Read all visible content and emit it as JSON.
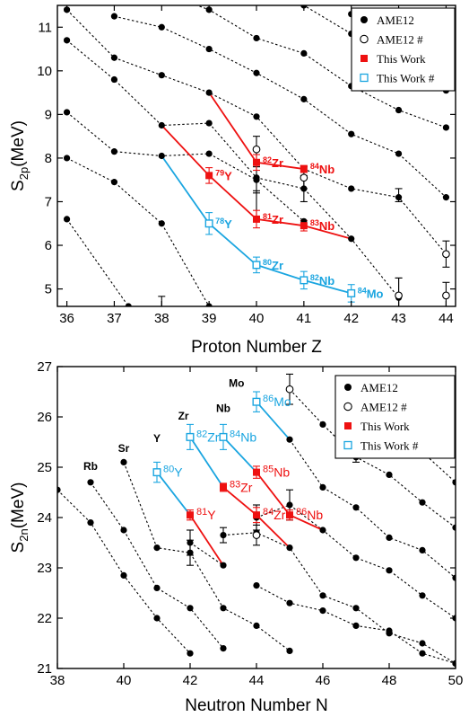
{
  "chart_data": [
    {
      "type": "scatter",
      "xlabel": "Proton Number Z",
      "ylabel_main": "S",
      "ylabel_sub": "2p",
      "ylabel_unit": "(MeV)",
      "xlim": [
        35.8,
        44.2
      ],
      "ylim": [
        4.6,
        11.5
      ],
      "xticks": [
        36,
        37,
        38,
        39,
        40,
        41,
        42,
        43,
        44
      ],
      "yticks": [
        5,
        6,
        7,
        8,
        9,
        10,
        11
      ],
      "legend": {
        "placement": "top-right",
        "entries": [
          {
            "label": "AME12",
            "marker": "filled-circle",
            "color": "#000000"
          },
          {
            "label": "AME12 #",
            "marker": "open-circle",
            "color": "#000000"
          },
          {
            "label": "This Work",
            "marker": "filled-square",
            "color": "#ee1111"
          },
          {
            "label": "This Work #",
            "marker": "open-square",
            "color": "#1aa5e0"
          }
        ]
      },
      "ame_chains": [
        [
          [
            36,
            6.6
          ],
          [
            37.3,
            4.6
          ]
        ],
        [
          [
            36,
            8.0
          ],
          [
            37,
            7.45
          ],
          [
            38,
            6.5
          ],
          [
            39,
            4.6
          ]
        ],
        [
          [
            36,
            9.05
          ],
          [
            37,
            8.15
          ],
          [
            38,
            8.05
          ],
          [
            39,
            8.1
          ],
          [
            40,
            7.5
          ],
          [
            41,
            6.55
          ]
        ],
        [
          [
            36,
            10.7
          ],
          [
            37,
            9.8
          ],
          [
            38,
            8.75
          ],
          [
            39,
            8.8
          ],
          [
            40,
            7.55
          ],
          [
            41,
            7.3
          ],
          [
            42,
            6.15
          ],
          [
            43,
            4.8
          ]
        ],
        [
          [
            36,
            11.4
          ],
          [
            37,
            10.3
          ],
          [
            38,
            9.9
          ],
          [
            39,
            9.5
          ],
          [
            40,
            8.95
          ],
          [
            41,
            7.75
          ],
          [
            42,
            7.3
          ],
          [
            43,
            7.1
          ],
          [
            44,
            5.8
          ]
        ],
        [
          [
            37,
            11.25
          ],
          [
            38,
            11.0
          ],
          [
            39,
            10.5
          ],
          [
            40,
            9.95
          ],
          [
            41,
            9.35
          ],
          [
            42,
            8.55
          ],
          [
            43,
            8.1
          ],
          [
            44,
            7.1
          ]
        ],
        [
          [
            38,
            11.8
          ],
          [
            39,
            11.4
          ],
          [
            40,
            10.75
          ],
          [
            41,
            10.4
          ],
          [
            42,
            9.65
          ],
          [
            43,
            9.1
          ],
          [
            44,
            8.7
          ]
        ],
        [
          [
            40,
            11.9
          ],
          [
            41,
            11.5
          ],
          [
            42,
            10.85
          ],
          [
            43,
            10.5
          ],
          [
            44,
            9.55
          ]
        ],
        [
          [
            42,
            11.3
          ],
          [
            43,
            11.0
          ],
          [
            44,
            10.5
          ]
        ]
      ],
      "ame_errorbars": [
        {
          "x": 38,
          "y": 4.65,
          "err": 0.18
        },
        {
          "x": 40,
          "y": 6.95,
          "err": 0.3
        },
        {
          "x": 40,
          "y": 7.5,
          "err": 0.3
        },
        {
          "x": 41,
          "y": 7.3,
          "err": 0.3
        },
        {
          "x": 43,
          "y": 7.15,
          "err": 0.15
        },
        {
          "x": 43,
          "y": 4.85,
          "err": 0.4
        }
      ],
      "ame_estimated": [
        {
          "x": 40,
          "y": 8.2,
          "err": 0.3
        },
        {
          "x": 41,
          "y": 7.55,
          "err": 0.25
        },
        {
          "x": 43,
          "y": 4.85,
          "err": 0.4
        },
        {
          "x": 44,
          "y": 5.8,
          "err": 0.3
        },
        {
          "x": 44,
          "y": 4.85,
          "err": 0.3
        }
      ],
      "this_work_lines": [
        [
          [
            38,
            8.75
          ],
          [
            39,
            7.6
          ],
          [
            40,
            6.6
          ],
          [
            41,
            6.45
          ],
          [
            42,
            6.15
          ]
        ],
        [
          [
            39,
            9.5
          ],
          [
            40,
            7.9
          ],
          [
            41,
            7.75
          ]
        ],
        [
          [
            38,
            8.05
          ],
          [
            39,
            6.5
          ],
          [
            40,
            5.55
          ],
          [
            41,
            5.2
          ],
          [
            42,
            4.9
          ]
        ]
      ],
      "this_work": [
        {
          "x": 39,
          "y": 7.6,
          "err": 0.18,
          "label_pre": "79",
          "label_el": "Y"
        },
        {
          "x": 40,
          "y": 7.9,
          "err": 0.18,
          "label_pre": "82",
          "label_el": "Zr"
        },
        {
          "x": 41,
          "y": 7.75,
          "err": 0.08,
          "label_pre": "84",
          "label_el": "Nb"
        },
        {
          "x": 40,
          "y": 6.6,
          "err": 0.2,
          "label_pre": "81",
          "label_el": "Zr"
        },
        {
          "x": 41,
          "y": 6.45,
          "err": 0.12,
          "label_pre": "83",
          "label_el": "Nb"
        }
      ],
      "this_work_est": [
        {
          "x": 39,
          "y": 6.5,
          "err": 0.25,
          "label_pre": "78",
          "label_el": "Y"
        },
        {
          "x": 40,
          "y": 5.55,
          "err": 0.18,
          "label_pre": "80",
          "label_el": "Zr"
        },
        {
          "x": 41,
          "y": 5.2,
          "err": 0.2,
          "label_pre": "82",
          "label_el": "Nb"
        },
        {
          "x": 42,
          "y": 4.9,
          "err": 0.2,
          "label_pre": "84",
          "label_el": "Mo"
        }
      ]
    },
    {
      "type": "scatter",
      "xlabel": "Neutron Number N",
      "ylabel_main": "S",
      "ylabel_sub": "2n",
      "ylabel_unit": "(MeV)",
      "xlim": [
        38,
        50
      ],
      "ylim": [
        21,
        27
      ],
      "xticks": [
        38,
        40,
        42,
        44,
        46,
        48,
        50
      ],
      "yticks": [
        21,
        22,
        23,
        24,
        25,
        26,
        27
      ],
      "legend": {
        "placement": "top-right",
        "entries": [
          {
            "label": "AME12",
            "marker": "filled-circle",
            "color": "#000000"
          },
          {
            "label": "AME12 #",
            "marker": "open-circle",
            "color": "#000000"
          },
          {
            "label": "This Work",
            "marker": "filled-square",
            "color": "#ee1111"
          },
          {
            "label": "This Work #",
            "marker": "open-square",
            "color": "#1aa5e0"
          }
        ]
      },
      "element_labels": [
        {
          "x": 39,
          "y": 24.95,
          "text": "Rb"
        },
        {
          "x": 40,
          "y": 25.3,
          "text": "Sr"
        },
        {
          "x": 41,
          "y": 25.5,
          "text": "Y"
        },
        {
          "x": 41.8,
          "y": 25.95,
          "text": "Zr"
        },
        {
          "x": 43,
          "y": 26.1,
          "text": "Nb"
        },
        {
          "x": 43.4,
          "y": 26.6,
          "text": "Mo"
        }
      ],
      "ame_chains": [
        [
          [
            38,
            24.55
          ],
          [
            39,
            23.9
          ],
          [
            40,
            22.85
          ],
          [
            41,
            22.0
          ],
          [
            42,
            21.3
          ]
        ],
        [
          [
            39,
            24.7
          ],
          [
            40,
            23.75
          ],
          [
            41,
            22.6
          ],
          [
            42,
            22.2
          ],
          [
            43,
            21.4
          ]
        ],
        [
          [
            40,
            25.1
          ],
          [
            41,
            23.4
          ],
          [
            42,
            23.3
          ],
          [
            43,
            22.2
          ],
          [
            44,
            21.85
          ],
          [
            45,
            21.35
          ]
        ],
        [
          [
            42,
            23.5
          ],
          [
            43,
            23.05
          ]
        ],
        [
          [
            43,
            23.65
          ],
          [
            44,
            23.7
          ],
          [
            45,
            23.4
          ],
          [
            46,
            22.45
          ],
          [
            47,
            22.2
          ],
          [
            48,
            21.7
          ],
          [
            49,
            21.5
          ],
          [
            50,
            21.1
          ]
        ],
        [
          [
            44,
            22.65
          ],
          [
            45,
            22.3
          ],
          [
            46,
            22.15
          ],
          [
            47,
            21.85
          ],
          [
            48,
            21.75
          ],
          [
            49,
            21.3
          ],
          [
            50,
            21.1
          ]
        ],
        [
          [
            44,
            24.0
          ],
          [
            45,
            24.25
          ],
          [
            46,
            23.75
          ],
          [
            47,
            23.2
          ],
          [
            48,
            22.95
          ],
          [
            49,
            22.45
          ],
          [
            50,
            22.0
          ]
        ],
        [
          [
            45,
            25.55
          ],
          [
            46,
            24.6
          ],
          [
            47,
            24.2
          ],
          [
            48,
            23.6
          ],
          [
            49,
            23.35
          ],
          [
            50,
            22.8
          ]
        ],
        [
          [
            45,
            26.55
          ],
          [
            46,
            25.85
          ],
          [
            47,
            25.2
          ],
          [
            48,
            24.85
          ],
          [
            49,
            24.3
          ],
          [
            50,
            23.8
          ]
        ],
        [
          [
            47,
            26.45
          ],
          [
            48,
            25.7
          ],
          [
            49,
            25.3
          ],
          [
            50,
            24.7
          ]
        ],
        [
          [
            49,
            26.1
          ],
          [
            50,
            25.7
          ]
        ]
      ],
      "ame_errorbars": [
        {
          "x": 42,
          "y": 23.5,
          "err": 0.25
        },
        {
          "x": 42,
          "y": 23.3,
          "err": 0.25
        },
        {
          "x": 43,
          "y": 23.65,
          "err": 0.15
        },
        {
          "x": 44,
          "y": 24.0,
          "err": 0.25
        },
        {
          "x": 45,
          "y": 24.25,
          "err": 0.3
        },
        {
          "x": 47,
          "y": 25.2,
          "err": 0.1
        }
      ],
      "ame_estimated": [
        {
          "x": 44,
          "y": 23.65,
          "err": 0.2
        },
        {
          "x": 45,
          "y": 26.55,
          "err": 0.3
        }
      ],
      "this_work_lines": [
        [
          [
            41,
            24.9
          ],
          [
            42,
            24.05
          ],
          [
            43,
            23.05
          ]
        ],
        [
          [
            42,
            25.6
          ],
          [
            43,
            24.6
          ],
          [
            44,
            24.05
          ],
          [
            45,
            23.4
          ]
        ],
        [
          [
            43,
            25.6
          ],
          [
            44,
            24.9
          ],
          [
            45,
            24.05
          ],
          [
            46,
            23.75
          ]
        ],
        [
          [
            44,
            26.3
          ],
          [
            45,
            25.55
          ]
        ]
      ],
      "this_work": [
        {
          "x": 42,
          "y": 24.05,
          "err": 0.1,
          "label_pre": "81",
          "label_el": "Y"
        },
        {
          "x": 43,
          "y": 24.6,
          "err": 0.08,
          "label_pre": "83",
          "label_el": "Zr"
        },
        {
          "x": 44,
          "y": 24.05,
          "err": 0.15,
          "label_pre": "84",
          "label_el": "Zr"
        },
        {
          "x": 44,
          "y": 24.9,
          "err": 0.12,
          "label_pre": "85",
          "label_el": "Nb"
        },
        {
          "x": 45,
          "y": 24.05,
          "err": 0.1,
          "label_pre": "86",
          "label_el": "Nb"
        }
      ],
      "this_work_est": [
        {
          "x": 41,
          "y": 24.9,
          "err": 0.2,
          "label_pre": "80",
          "label_el": "Y"
        },
        {
          "x": 42,
          "y": 25.6,
          "err": 0.25,
          "label_pre": "82",
          "label_el": "Zr"
        },
        {
          "x": 43,
          "y": 25.6,
          "err": 0.25,
          "label_pre": "84",
          "label_el": "Nb"
        },
        {
          "x": 44,
          "y": 26.3,
          "err": 0.2,
          "label_pre": "86",
          "label_el": "Mo"
        }
      ]
    }
  ],
  "colors": {
    "red": "#ee1111",
    "blue": "#1aa5e0",
    "black": "#000000"
  }
}
